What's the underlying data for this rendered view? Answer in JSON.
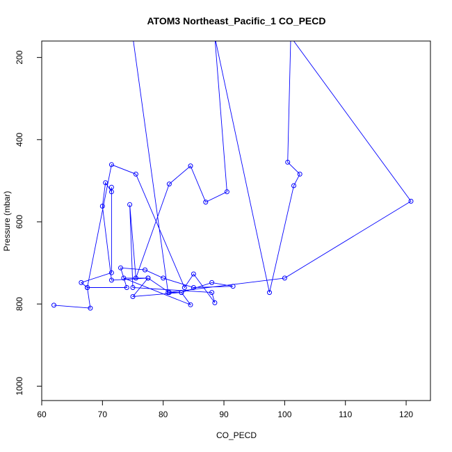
{
  "chart_data": {
    "type": "line",
    "title": "ATOM3 Northeast_Pacific_1 CO_PECD",
    "xlabel": "CO_PECD",
    "ylabel": "Pressure (mbar)",
    "xlim": [
      60,
      124
    ],
    "ylim": [
      1035,
      160
    ],
    "y_reversed": true,
    "x_ticks": [
      "60",
      "70",
      "80",
      "90",
      "100",
      "110",
      "120"
    ],
    "y_ticks": [
      "200",
      "400",
      "600",
      "800",
      "1000"
    ],
    "series_color": "#0000ff",
    "marker": "open-circle",
    "grid": false,
    "legend": "none",
    "x": [
      62.0,
      68.0,
      67.5,
      74.0,
      73.0,
      77.0,
      80.0,
      85.0,
      91.5,
      88.0,
      83.0,
      75.0,
      77.5,
      81.0,
      83.0,
      84.5,
      73.5,
      77.5,
      71.5,
      70.0,
      70.5,
      71.5,
      71.5,
      71.5,
      66.5,
      67.5,
      71.5,
      75.5,
      83.5,
      85.0,
      88.5,
      88.0,
      75.0,
      74.5,
      75.5,
      81.0,
      84.5,
      87.0,
      90.5,
      88.5,
      97.5,
      101.5,
      102.5,
      100.5,
      101.0,
      120.8,
      100.0,
      80.8,
      75.0,
      78.0,
      71.5,
      70.5
    ],
    "y": [
      803,
      810,
      760,
      760,
      712,
      717,
      737,
      760,
      757,
      748,
      772,
      782,
      737,
      772,
      772,
      802,
      737,
      737,
      742,
      562,
      505,
      527,
      516,
      724,
      748,
      760,
      461,
      484,
      760,
      727,
      797,
      772,
      760,
      558,
      737,
      508,
      464,
      552,
      527,
      150,
      772,
      512,
      484,
      455,
      150,
      550,
      737,
      772,
      150,
      150,
      150,
      150
    ]
  }
}
